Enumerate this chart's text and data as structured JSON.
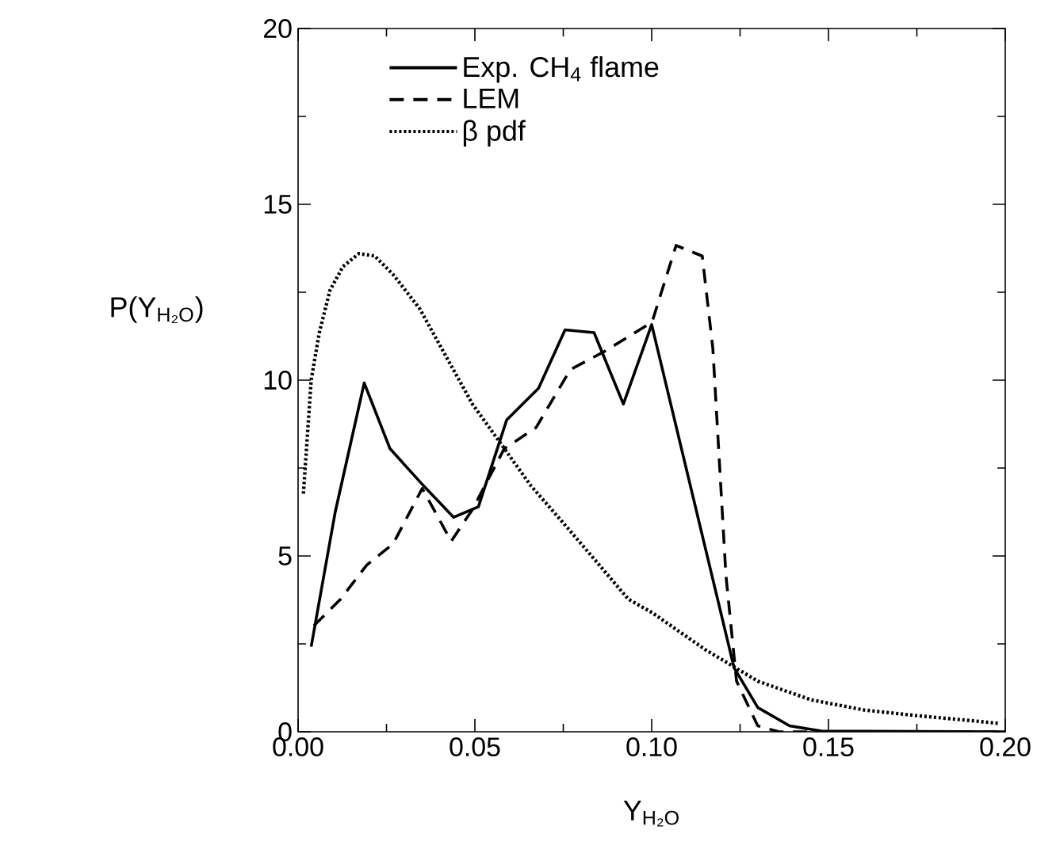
{
  "chart_data": {
    "type": "line",
    "xlabel": "Y$_{H₂O}$",
    "ylabel": "P(Y$_{H₂O}$)",
    "xlim": [
      0,
      0.2
    ],
    "ylim": [
      0,
      20
    ],
    "xticks": [
      {
        "value": 0,
        "label": "0.00"
      },
      {
        "value": 0.05,
        "label": "0.05"
      },
      {
        "value": 0.1,
        "label": "0.10"
      },
      {
        "value": 0.15,
        "label": "0.15"
      },
      {
        "value": 0.2,
        "label": "0.20"
      }
    ],
    "yticks": [
      0,
      5,
      10,
      15,
      20
    ],
    "legend": "top left",
    "grid": false,
    "marker": "none",
    "series": [
      {
        "name": "Exp. CH$_{4}$ flame",
        "color": "#000000",
        "line_style": "solid",
        "x": [
          0.0037,
          0.0105,
          0.0187,
          0.026,
          0.036,
          0.044,
          0.051,
          0.059,
          0.068,
          0.0755,
          0.0837,
          0.092,
          0.1,
          0.1233,
          0.13,
          0.139,
          0.148,
          0.2
        ],
        "values": [
          2.42,
          6.25,
          9.92,
          8.05,
          6.94,
          6.1,
          6.4,
          8.87,
          9.77,
          11.43,
          11.35,
          9.32,
          11.58,
          1.82,
          0.69,
          0.17,
          0.02,
          0
        ]
      },
      {
        "name": "LEM",
        "color": "#000000",
        "line_style": "dashed",
        "x": [
          0.0045,
          0.012,
          0.0194,
          0.0269,
          0.0351,
          0.0433,
          0.0493,
          0.0583,
          0.0673,
          0.077,
          0.0867,
          0.1001,
          0.1069,
          0.1143,
          0.1173,
          0.121,
          0.124,
          0.13,
          0.136,
          0.2
        ],
        "values": [
          3.02,
          3.77,
          4.74,
          5.35,
          6.92,
          5.42,
          6.32,
          8.05,
          8.65,
          10.3,
          10.82,
          11.65,
          13.83,
          13.53,
          10.9,
          4.45,
          1.44,
          0.17,
          0,
          0
        ]
      },
      {
        "name": "β pdf",
        "color": "#000000",
        "line_style": "dotted",
        "x": [
          0.0015,
          0.0037,
          0.006,
          0.009,
          0.0127,
          0.0172,
          0.0217,
          0.0269,
          0.0344,
          0.0418,
          0.0493,
          0.0568,
          0.0658,
          0.0762,
          0.0852,
          0.0934,
          0.1001,
          0.1151,
          0.13,
          0.145,
          0.16,
          0.1749,
          0.19,
          0.198
        ],
        "values": [
          6.77,
          10.0,
          11.35,
          12.55,
          13.23,
          13.6,
          13.53,
          13.0,
          12.03,
          10.68,
          9.32,
          8.27,
          7.0,
          5.8,
          4.74,
          3.77,
          3.39,
          2.34,
          1.44,
          0.91,
          0.62,
          0.46,
          0.32,
          0.24
        ]
      }
    ]
  }
}
